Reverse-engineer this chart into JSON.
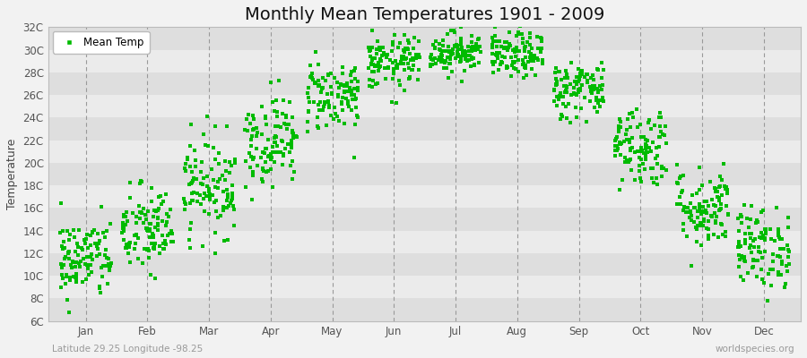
{
  "title": "Monthly Mean Temperatures 1901 - 2009",
  "ylabel": "Temperature",
  "subtitle_left": "Latitude 29.25 Longitude -98.25",
  "subtitle_right": "worldspecies.org",
  "ytick_labels": [
    "6C",
    "8C",
    "10C",
    "12C",
    "14C",
    "16C",
    "18C",
    "20C",
    "22C",
    "24C",
    "26C",
    "28C",
    "30C",
    "32C"
  ],
  "ytick_values": [
    6,
    8,
    10,
    12,
    14,
    16,
    18,
    20,
    22,
    24,
    26,
    28,
    30,
    32
  ],
  "ylim": [
    6,
    32
  ],
  "months": [
    "Jan",
    "Feb",
    "Mar",
    "Apr",
    "May",
    "Jun",
    "Jul",
    "Aug",
    "Sep",
    "Oct",
    "Nov",
    "Dec"
  ],
  "month_means": [
    11.5,
    14.0,
    18.0,
    22.0,
    26.0,
    28.8,
    29.8,
    29.5,
    26.5,
    21.5,
    16.0,
    12.5
  ],
  "month_stds": [
    1.8,
    2.0,
    2.2,
    2.0,
    1.6,
    1.2,
    0.9,
    1.0,
    1.3,
    1.8,
    1.8,
    1.8
  ],
  "dot_color": "#00bb00",
  "dot_size": 5,
  "bg_stripe_light": "#ebebeb",
  "bg_stripe_dark": "#dedede",
  "n_years": 109,
  "seed": 42,
  "title_fontsize": 14,
  "axis_label_fontsize": 9,
  "tick_fontsize": 8.5,
  "legend_fontsize": 8.5,
  "subtitle_fontsize": 7.5
}
